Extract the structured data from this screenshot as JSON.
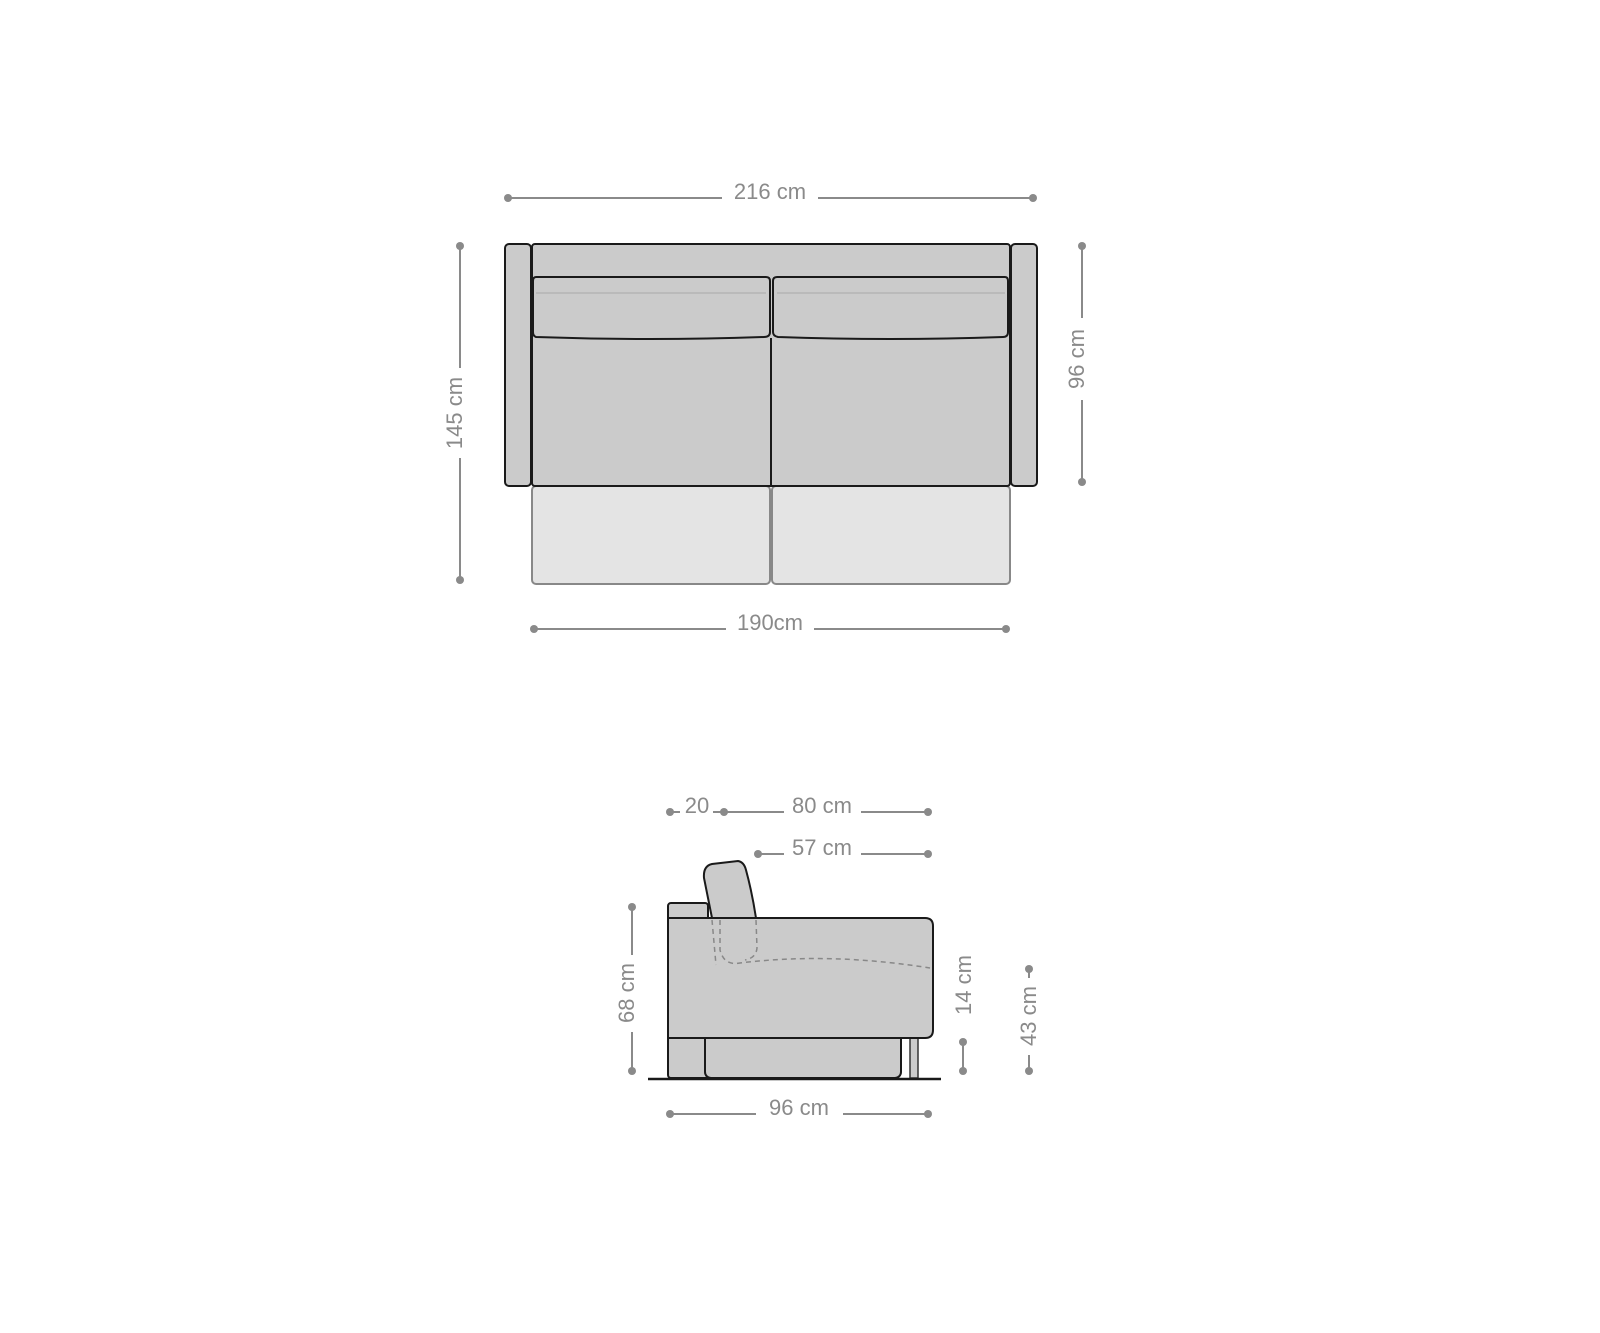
{
  "top_view": {
    "overall_width": "216 cm",
    "inner_width": "190cm",
    "extended_depth": "145 cm",
    "depth": "96 cm"
  },
  "side_view": {
    "arm_depth": "20",
    "seat_back_depth": "80 cm",
    "seat_depth": "57 cm",
    "height": "68 cm",
    "cushion_thickness": "14 cm",
    "seat_height": "43 cm",
    "depth": "96 cm"
  },
  "colors": {
    "upholstery": "#cbcbcb",
    "extension": "#e4e4e4",
    "dimension": "#8a8a8a"
  }
}
